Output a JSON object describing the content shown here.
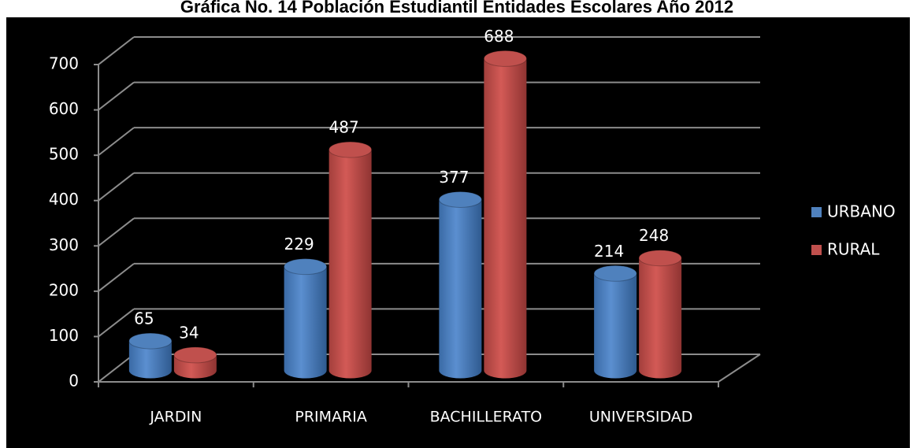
{
  "chart_data": {
    "type": "bar3d",
    "title": "Gráfica No. 14 Población Estudiantil Entidades Escolares Año 2012",
    "categories": [
      "JARDIN",
      "PRIMARIA",
      "BACHILLERATO",
      "UNIVERSIDAD"
    ],
    "series": [
      {
        "name": "URBANO",
        "color": "#4f81bd",
        "values": [
          65,
          229,
          377,
          214
        ]
      },
      {
        "name": "RURAL",
        "color": "#c0504d",
        "values": [
          34,
          487,
          688,
          248
        ]
      }
    ],
    "ylim": [
      0,
      700
    ],
    "yticks": [
      0,
      100,
      200,
      300,
      400,
      500,
      600,
      700
    ],
    "grid": true,
    "legend": "right"
  }
}
